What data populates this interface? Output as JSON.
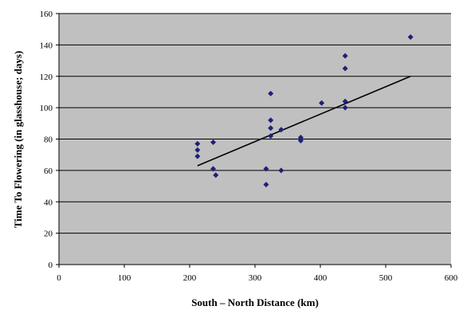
{
  "chart_data": {
    "type": "scatter",
    "title": "",
    "xlabel": "South – North Distance (km)",
    "ylabel": "Time To Flowering (in glasshouse; days)",
    "xlim": [
      0,
      600
    ],
    "ylim": [
      0,
      160
    ],
    "x_ticks": [
      0,
      100,
      200,
      300,
      400,
      500,
      600
    ],
    "y_ticks": [
      0,
      20,
      40,
      60,
      80,
      100,
      120,
      140,
      160
    ],
    "grid": "horizontal",
    "legend": "none",
    "plot_background": "#c0c0c0",
    "marker_color": "#1f1f7a",
    "trendline_color": "#000000",
    "points": [
      {
        "x": 212,
        "y": 77
      },
      {
        "x": 212,
        "y": 73
      },
      {
        "x": 212,
        "y": 69
      },
      {
        "x": 236,
        "y": 78
      },
      {
        "x": 236,
        "y": 61
      },
      {
        "x": 240,
        "y": 57
      },
      {
        "x": 317,
        "y": 61
      },
      {
        "x": 317,
        "y": 51
      },
      {
        "x": 324,
        "y": 109
      },
      {
        "x": 324,
        "y": 92
      },
      {
        "x": 324,
        "y": 87
      },
      {
        "x": 324,
        "y": 82
      },
      {
        "x": 340,
        "y": 86
      },
      {
        "x": 340,
        "y": 60
      },
      {
        "x": 370,
        "y": 81
      },
      {
        "x": 370,
        "y": 79
      },
      {
        "x": 402,
        "y": 103
      },
      {
        "x": 438,
        "y": 133
      },
      {
        "x": 438,
        "y": 125
      },
      {
        "x": 438,
        "y": 104
      },
      {
        "x": 438,
        "y": 100
      },
      {
        "x": 538,
        "y": 145
      }
    ],
    "trendline": {
      "x": [
        212,
        538
      ],
      "y": [
        63,
        120
      ]
    }
  }
}
